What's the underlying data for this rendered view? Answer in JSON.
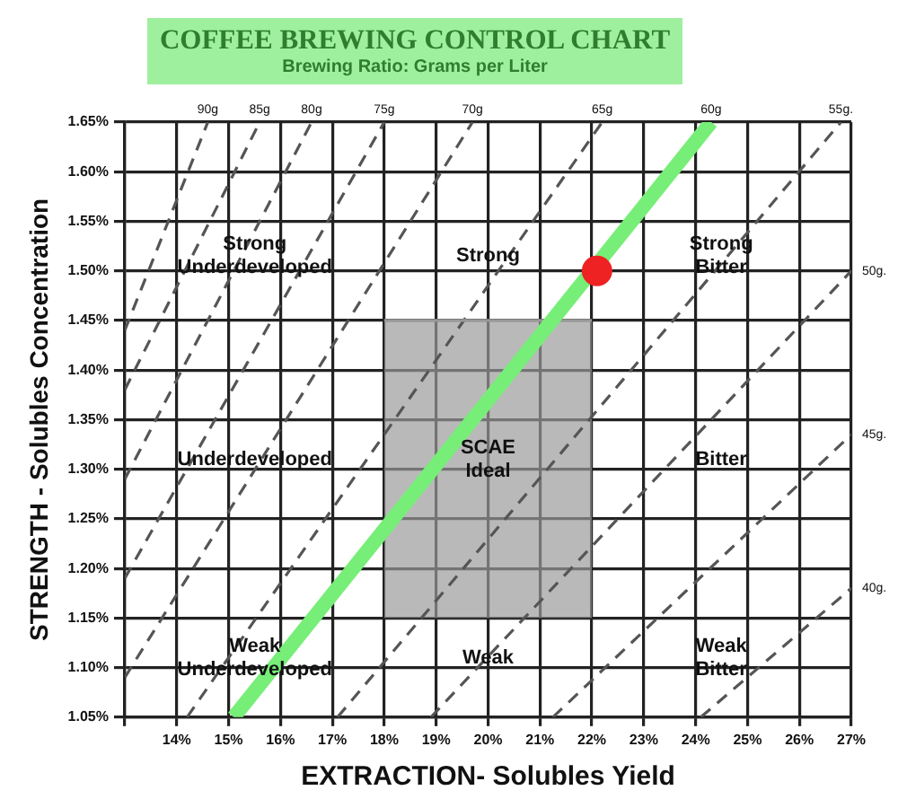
{
  "chart_data": {
    "type": "line",
    "title": "COFFEE BREWING CONTROL CHART",
    "subtitle": "Brewing Ratio: Grams per Liter",
    "xlabel": "EXTRACTION- Solubles Yield",
    "ylabel": "STRENGTH - Solubles Concentration",
    "xlim": [
      13,
      27
    ],
    "ylim": [
      1.05,
      1.65
    ],
    "xticks": [
      {
        "value": 13,
        "label": null
      },
      {
        "value": 14,
        "label": "14%"
      },
      {
        "value": 15,
        "label": "15%"
      },
      {
        "value": 16,
        "label": "16%"
      },
      {
        "value": 17,
        "label": "17%"
      },
      {
        "value": 18,
        "label": "18%"
      },
      {
        "value": 19,
        "label": "19%"
      },
      {
        "value": 20,
        "label": "20%"
      },
      {
        "value": 21,
        "label": "21%"
      },
      {
        "value": 22,
        "label": "22%"
      },
      {
        "value": 23,
        "label": "23%"
      },
      {
        "value": 24,
        "label": "24%"
      },
      {
        "value": 25,
        "label": "25%"
      },
      {
        "value": 26,
        "label": "26%"
      },
      {
        "value": 27,
        "label": "27%"
      }
    ],
    "yticks": [
      {
        "value": 1.05,
        "label": "1.05%"
      },
      {
        "value": 1.1,
        "label": "1.10%"
      },
      {
        "value": 1.15,
        "label": "1.15%"
      },
      {
        "value": 1.2,
        "label": "1.20%"
      },
      {
        "value": 1.25,
        "label": "1.25%"
      },
      {
        "value": 1.3,
        "label": "1.30%"
      },
      {
        "value": 1.35,
        "label": "1.35%"
      },
      {
        "value": 1.4,
        "label": "1.40%"
      },
      {
        "value": 1.45,
        "label": "1.45%"
      },
      {
        "value": 1.5,
        "label": "1.50%"
      },
      {
        "value": 1.55,
        "label": "1.55%"
      },
      {
        "value": 1.6,
        "label": "1.60%"
      },
      {
        "value": 1.65,
        "label": "1.65%"
      }
    ],
    "grid": true,
    "legend": false,
    "marker": "none",
    "series": [
      {
        "type": "line",
        "color": "#999999",
        "line_style": "solid",
        "x": [
          18,
          22
        ],
        "values": [
          1.45,
          1.45
        ],
        "lower": [
          1.15,
          1.15
        ],
        "upper": [
          1.45,
          1.45
        ]
      },
      {
        "name": "90g",
        "type": "line",
        "color": "#555555",
        "line_style": "dashed",
        "x": [
          13,
          14.6
        ],
        "values": [
          1.44,
          1.65
        ]
      },
      {
        "name": "85g",
        "type": "line",
        "color": "#555555",
        "line_style": "dashed",
        "x": [
          13,
          15.6
        ],
        "values": [
          1.38,
          1.65
        ]
      },
      {
        "name": "80g",
        "type": "line",
        "color": "#555555",
        "line_style": "dashed",
        "x": [
          13,
          16.6
        ],
        "values": [
          1.29,
          1.65
        ]
      },
      {
        "name": "75g",
        "type": "line",
        "color": "#555555",
        "line_style": "dashed",
        "x": [
          13,
          18
        ],
        "values": [
          1.19,
          1.65
        ]
      },
      {
        "name": "70g",
        "type": "line",
        "color": "#555555",
        "line_style": "dashed",
        "x": [
          13,
          19.7
        ],
        "values": [
          1.09,
          1.65
        ]
      },
      {
        "name": "65g",
        "type": "line",
        "color": "#555555",
        "line_style": "dashed",
        "x": [
          14.2,
          22.2
        ],
        "values": [
          1.05,
          1.65
        ]
      },
      {
        "name": "60g",
        "type": "line",
        "color": "#77ee77",
        "line_style": "solid",
        "x": [
          15.1,
          24.3
        ],
        "values": [
          1.05,
          1.65
        ]
      },
      {
        "name": "55g.",
        "type": "line",
        "color": "#555555",
        "line_style": "dashed",
        "x": [
          17.1,
          26.8
        ],
        "values": [
          1.05,
          1.65
        ]
      },
      {
        "name": "50g.",
        "type": "line",
        "color": "#555555",
        "line_style": "dashed",
        "x": [
          18.9,
          27
        ],
        "values": [
          1.05,
          1.5
        ]
      },
      {
        "name": "45g.",
        "type": "line",
        "color": "#555555",
        "line_style": "dashed",
        "x": [
          21.25,
          27
        ],
        "values": [
          1.05,
          1.335
        ]
      },
      {
        "name": "40g.",
        "type": "line",
        "color": "#555555",
        "line_style": "dashed",
        "x": [
          24.1,
          27
        ],
        "values": [
          1.05,
          1.18
        ]
      },
      {
        "type": "scatter",
        "color": "#ee2222",
        "marker": "circle",
        "x": [
          22.1
        ],
        "values": [
          1.5
        ]
      }
    ],
    "annotations": [
      "Strong\nUnderdeveloped",
      "Strong",
      "Strong\nBitter",
      "Underdeveloped",
      "SCAE\nIdeal",
      "Bitter",
      "Weak\nUnderdeveloped",
      "Weak",
      "Weak\nBitter"
    ]
  }
}
